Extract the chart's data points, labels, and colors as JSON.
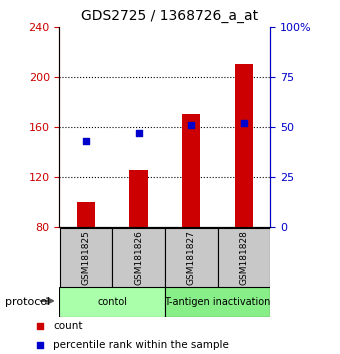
{
  "title": "GDS2725 / 1368726_a_at",
  "samples": [
    "GSM181825",
    "GSM181826",
    "GSM181827",
    "GSM181828"
  ],
  "bar_values": [
    100,
    125,
    170,
    210
  ],
  "percentile_values": [
    43,
    47,
    51,
    52
  ],
  "bar_color": "#cc0000",
  "percentile_color": "#0000cc",
  "ylim_left": [
    80,
    240
  ],
  "ylim_right": [
    0,
    100
  ],
  "yticks_left": [
    80,
    120,
    160,
    200,
    240
  ],
  "yticks_right": [
    0,
    25,
    50,
    75,
    100
  ],
  "ytick_labels_right": [
    "0",
    "25",
    "50",
    "75",
    "100%"
  ],
  "protocols": [
    {
      "label": "contol",
      "span": [
        0,
        2
      ],
      "color": "#aaffaa"
    },
    {
      "label": "T-antigen inactivation",
      "span": [
        2,
        4
      ],
      "color": "#88ee88"
    }
  ],
  "protocol_label": "protocol",
  "legend_count_label": "count",
  "legend_pct_label": "percentile rank within the sample",
  "bar_width": 0.35,
  "title_fontsize": 10
}
